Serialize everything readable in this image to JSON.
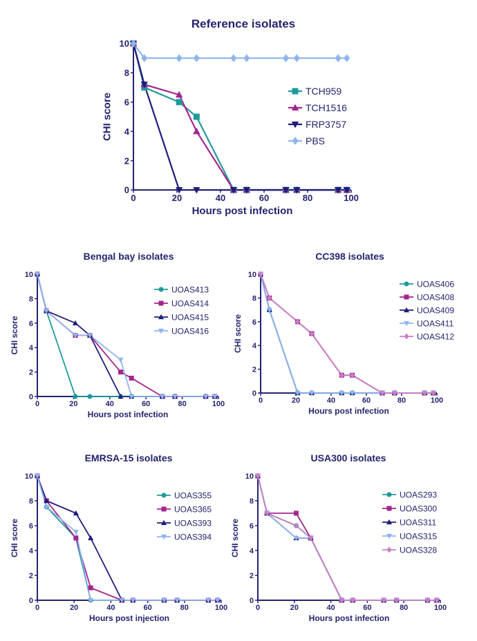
{
  "chart_data": [
    {
      "type": "line",
      "title": "Reference isolates",
      "xlabel": "Hours post infection",
      "ylabel": "CHI score",
      "xlim": [
        0,
        100
      ],
      "ylim": [
        0,
        10
      ],
      "xticks": [
        0,
        20,
        40,
        60,
        80,
        100
      ],
      "yticks": [
        0,
        2,
        4,
        6,
        8,
        10
      ],
      "legend": "right",
      "series": [
        {
          "name": "TCH959",
          "color": "#1f9a9a",
          "marker": "square",
          "x": [
            0,
            5,
            21,
            29,
            46,
            52,
            70,
            75,
            94,
            98
          ],
          "y": [
            10,
            7,
            6,
            5,
            0,
            0,
            0,
            0,
            0,
            0
          ]
        },
        {
          "name": "TCH1516",
          "color": "#a3258f",
          "marker": "triangle-up",
          "x": [
            0,
            5,
            21,
            29,
            46,
            52,
            70,
            75,
            94,
            98
          ],
          "y": [
            10,
            7.2,
            6.5,
            4,
            0,
            0,
            0,
            0,
            0,
            0
          ]
        },
        {
          "name": "FRP3757",
          "color": "#1d1c7a",
          "marker": "triangle-down",
          "x": [
            0,
            5,
            21,
            29,
            46,
            52,
            70,
            75,
            94,
            98
          ],
          "y": [
            10,
            7.2,
            0,
            0,
            0,
            0,
            0,
            0,
            0,
            0
          ]
        },
        {
          "name": "PBS",
          "color": "#8fb4ee",
          "marker": "diamond",
          "x": [
            0,
            5,
            21,
            29,
            46,
            52,
            70,
            75,
            94,
            98
          ],
          "y": [
            10,
            9,
            9,
            9,
            9,
            9,
            9,
            9,
            9,
            9
          ]
        }
      ]
    },
    {
      "type": "line",
      "title": "Bengal bay isolates",
      "xlabel": "Hours post infection",
      "ylabel": "CHI score",
      "xlim": [
        0,
        100
      ],
      "ylim": [
        0,
        10
      ],
      "xticks": [
        0,
        20,
        40,
        60,
        80,
        100
      ],
      "yticks": [
        0,
        2,
        4,
        6,
        8,
        10
      ],
      "legend": "right",
      "series": [
        {
          "name": "UOAS413",
          "color": "#1f9a9a",
          "marker": "circle",
          "x": [
            0,
            5,
            21,
            29,
            46,
            52,
            69,
            76,
            93,
            98
          ],
          "y": [
            10,
            7,
            0,
            0,
            0,
            0,
            0,
            0,
            0,
            0
          ]
        },
        {
          "name": "UOAS414",
          "color": "#a3258f",
          "marker": "square",
          "x": [
            0,
            5,
            21,
            29,
            46,
            52,
            69,
            76,
            93,
            98
          ],
          "y": [
            10,
            7,
            5,
            5,
            2,
            1.5,
            0,
            0,
            0,
            0
          ]
        },
        {
          "name": "UOAS415",
          "color": "#1d1c7a",
          "marker": "triangle-up",
          "x": [
            0,
            5,
            21,
            29,
            46,
            52,
            69,
            76,
            93,
            98
          ],
          "y": [
            10,
            7,
            6,
            5,
            0,
            0,
            0,
            0,
            0,
            0
          ]
        },
        {
          "name": "UOAS416",
          "color": "#8fb4ee",
          "marker": "triangle-down",
          "x": [
            0,
            5,
            21,
            29,
            46,
            52,
            69,
            76,
            93,
            98
          ],
          "y": [
            10,
            7,
            5,
            5,
            3,
            0,
            0,
            0,
            0,
            0
          ]
        }
      ]
    },
    {
      "type": "line",
      "title": "CC398 isolates",
      "xlabel": "Hours post infection",
      "ylabel": "CHI score",
      "xlim": [
        0,
        100
      ],
      "ylim": [
        0,
        10
      ],
      "xticks": [
        0,
        20,
        40,
        60,
        80,
        100
      ],
      "yticks": [
        0,
        2,
        4,
        6,
        8,
        10
      ],
      "legend": "right",
      "series": [
        {
          "name": "UOAS406",
          "color": "#1f9a9a",
          "marker": "circle",
          "x": [
            0,
            5,
            21,
            29,
            46,
            52,
            69,
            76,
            93,
            98
          ],
          "y": [
            10,
            7,
            0,
            0,
            0,
            0,
            0,
            0,
            0,
            0
          ]
        },
        {
          "name": "UOAS408",
          "color": "#a3258f",
          "marker": "square",
          "x": [
            0,
            5,
            21,
            29,
            46,
            52,
            69,
            76,
            93,
            98
          ],
          "y": [
            10,
            8,
            6,
            5,
            1.5,
            1.5,
            0,
            0,
            0,
            0
          ]
        },
        {
          "name": "UOAS409",
          "color": "#1d1c7a",
          "marker": "triangle-up",
          "x": [
            0,
            5,
            21,
            29,
            46,
            52,
            69,
            76,
            93,
            98
          ],
          "y": [
            10,
            7,
            0,
            0,
            0,
            0,
            0,
            0,
            0,
            0
          ]
        },
        {
          "name": "UOAS411",
          "color": "#8fb4ee",
          "marker": "triangle-down",
          "x": [
            0,
            5,
            21,
            29,
            46,
            52,
            69,
            76,
            93,
            98
          ],
          "y": [
            10,
            7,
            0,
            0,
            0,
            0,
            0,
            0,
            0,
            0
          ]
        },
        {
          "name": "UOAS412",
          "color": "#c77fc4",
          "marker": "diamond",
          "x": [
            0,
            5,
            21,
            29,
            46,
            52,
            69,
            76,
            93,
            98
          ],
          "y": [
            10,
            8,
            6,
            5,
            1.5,
            1.5,
            0,
            0,
            0,
            0
          ]
        }
      ]
    },
    {
      "type": "line",
      "title": "EMRSA-15 isolates",
      "xlabel": "Hours post injection",
      "ylabel": "CHI score",
      "xlim": [
        0,
        100
      ],
      "ylim": [
        0,
        10
      ],
      "xticks": [
        0,
        20,
        40,
        60,
        80,
        100
      ],
      "yticks": [
        0,
        2,
        4,
        6,
        8,
        10
      ],
      "legend": "right",
      "series": [
        {
          "name": "UOAS355",
          "color": "#1f9a9a",
          "marker": "circle",
          "x": [
            0,
            5,
            21,
            29,
            46,
            52,
            69,
            76,
            93,
            98
          ],
          "y": [
            10,
            7.5,
            5,
            0,
            0,
            0,
            0,
            0,
            0,
            0
          ]
        },
        {
          "name": "UOAS365",
          "color": "#a3258f",
          "marker": "square",
          "x": [
            0,
            5,
            21,
            29,
            46,
            52,
            69,
            76,
            93,
            98
          ],
          "y": [
            10,
            8,
            5,
            1,
            0,
            0,
            0,
            0,
            0,
            0
          ]
        },
        {
          "name": "UOAS393",
          "color": "#1d1c7a",
          "marker": "triangle-up",
          "x": [
            0,
            5,
            21,
            29,
            46,
            52,
            69,
            76,
            93,
            98
          ],
          "y": [
            10,
            8,
            7,
            5,
            0,
            0,
            0,
            0,
            0,
            0
          ]
        },
        {
          "name": "UOAS394",
          "color": "#8fb4ee",
          "marker": "triangle-down",
          "x": [
            0,
            5,
            21,
            29,
            46,
            52,
            69,
            76,
            93,
            98
          ],
          "y": [
            10,
            7.5,
            5.5,
            0,
            0,
            0,
            0,
            0,
            0,
            0
          ]
        }
      ]
    },
    {
      "type": "line",
      "title": "USA300 isolates",
      "xlabel": "Hours post infection",
      "ylabel": "CHI score",
      "xlim": [
        0,
        100
      ],
      "ylim": [
        0,
        10
      ],
      "xticks": [
        0,
        20,
        40,
        60,
        80,
        100
      ],
      "yticks": [
        0,
        2,
        4,
        6,
        8,
        10
      ],
      "legend": "right",
      "series": [
        {
          "name": "UOAS293",
          "color": "#1f9a9a",
          "marker": "circle",
          "x": [
            0,
            5,
            21,
            29,
            46,
            52,
            69,
            76,
            93,
            98
          ],
          "y": [
            10,
            7,
            6,
            5,
            0,
            0,
            0,
            0,
            0,
            0
          ]
        },
        {
          "name": "UOAS300",
          "color": "#a3258f",
          "marker": "square",
          "x": [
            0,
            5,
            21,
            29,
            46,
            52,
            69,
            76,
            93,
            98
          ],
          "y": [
            10,
            7,
            7,
            5,
            0,
            0,
            0,
            0,
            0,
            0
          ]
        },
        {
          "name": "UOAS311",
          "color": "#1d1c7a",
          "marker": "triangle-up",
          "x": [
            0,
            5,
            21,
            29,
            46,
            52,
            69,
            76,
            93,
            98
          ],
          "y": [
            10,
            7,
            5,
            5,
            0,
            0,
            0,
            0,
            0,
            0
          ]
        },
        {
          "name": "UOAS315",
          "color": "#8fb4ee",
          "marker": "triangle-down",
          "x": [
            0,
            5,
            21,
            29,
            46,
            52,
            69,
            76,
            93,
            98
          ],
          "y": [
            10,
            7,
            5,
            5,
            0,
            0,
            0,
            0,
            0,
            0
          ]
        },
        {
          "name": "UOAS328",
          "color": "#c77fc4",
          "marker": "diamond",
          "x": [
            0,
            5,
            21,
            29,
            46,
            52,
            69,
            76,
            93,
            98
          ],
          "y": [
            10,
            7,
            6,
            5,
            0,
            0,
            0,
            0,
            0,
            0
          ]
        }
      ]
    }
  ]
}
